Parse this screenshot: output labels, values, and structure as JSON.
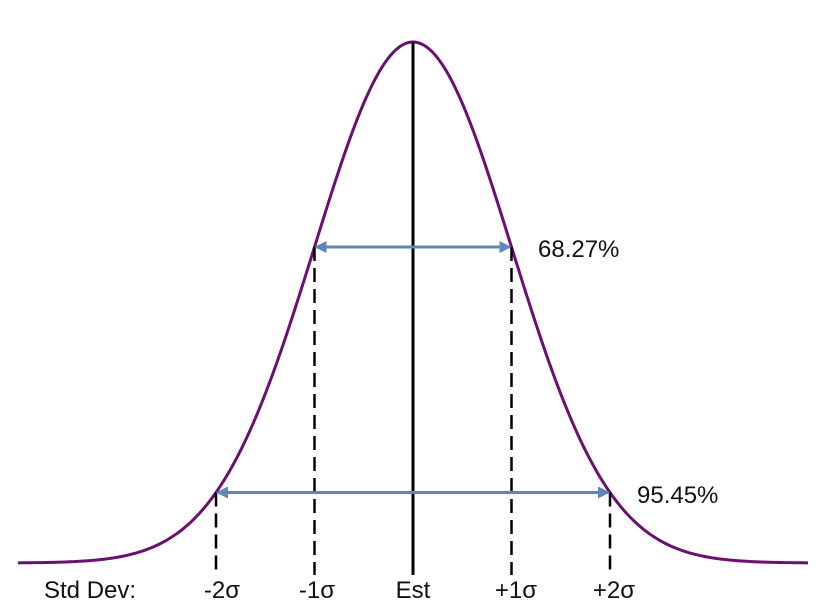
{
  "colors": {
    "curve": "#6b1070",
    "arrow": "#5b87bd",
    "line": "#000000",
    "text": "#111111"
  },
  "chart_data": {
    "type": "line",
    "description_kind": "normal distribution curve",
    "x_ticks": [
      -2,
      -1,
      0,
      1,
      2
    ],
    "bands": [
      {
        "sigma": 1,
        "label": "68.27%"
      },
      {
        "sigma": 2,
        "label": "95.45%"
      }
    ]
  },
  "axis": {
    "prefix": "Std Dev:",
    "ticks": [
      "-2σ",
      "-1σ",
      "Est",
      "+1σ",
      "+2σ"
    ]
  },
  "bands": {
    "inner_label": "68.27%",
    "outer_label": "95.45%"
  }
}
